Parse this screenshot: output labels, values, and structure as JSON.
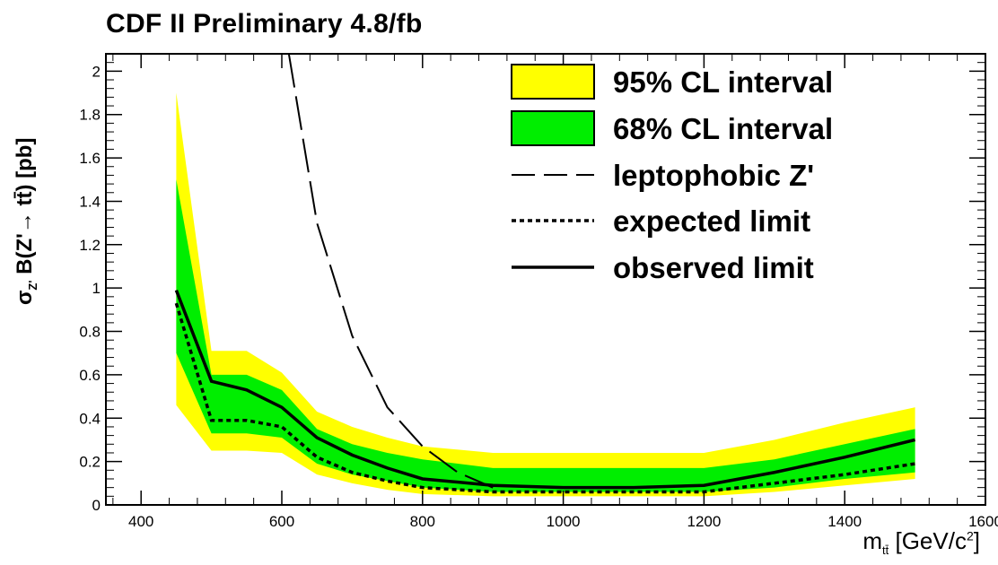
{
  "chart_data": {
    "type": "line",
    "title": "CDF II Preliminary 4.8/fb",
    "xlabel_main": "m",
    "xlabel_sub": "tt̄",
    "xlabel_unit": " [GeV/c",
    "xlabel_sup": "2",
    "xlabel_end": "]",
    "ylabel_sigma": "σ",
    "ylabel_sub": "Z'",
    "ylabel_rest": " B(Z'→ tt̄) [pb]",
    "xlim": [
      350,
      1600
    ],
    "ylim": [
      0,
      2.08
    ],
    "x_ticks": [
      400,
      600,
      800,
      1000,
      1200,
      1400,
      1600
    ],
    "y_ticks": [
      0,
      0.2,
      0.4,
      0.6,
      0.8,
      1,
      1.2,
      1.4,
      1.6,
      1.8,
      2
    ],
    "mass_points": [
      450,
      500,
      550,
      600,
      650,
      700,
      750,
      800,
      900,
      1000,
      1100,
      1200,
      1300,
      1400,
      1500
    ],
    "band95": {
      "name": "95% CL interval",
      "upper": [
        1.9,
        0.71,
        0.71,
        0.61,
        0.43,
        0.36,
        0.31,
        0.27,
        0.24,
        0.24,
        0.24,
        0.24,
        0.3,
        0.38,
        0.45
      ],
      "lower": [
        0.46,
        0.25,
        0.25,
        0.24,
        0.14,
        0.1,
        0.07,
        0.05,
        0.04,
        0.04,
        0.04,
        0.04,
        0.06,
        0.09,
        0.12
      ]
    },
    "band68": {
      "name": "68% CL interval",
      "upper": [
        1.5,
        0.6,
        0.6,
        0.53,
        0.35,
        0.28,
        0.24,
        0.21,
        0.17,
        0.17,
        0.17,
        0.17,
        0.21,
        0.28,
        0.35
      ],
      "lower": [
        0.7,
        0.33,
        0.33,
        0.31,
        0.19,
        0.14,
        0.11,
        0.08,
        0.06,
        0.06,
        0.06,
        0.06,
        0.08,
        0.12,
        0.15
      ]
    },
    "series": [
      {
        "name": "leptophobic Z'",
        "style": "longdash",
        "x": [
          610,
          650,
          700,
          750,
          800,
          850,
          900
        ],
        "y": [
          2.08,
          1.3,
          0.78,
          0.45,
          0.27,
          0.15,
          0.08
        ]
      },
      {
        "name": "expected limit",
        "style": "dotted",
        "x": [
          450,
          500,
          550,
          600,
          650,
          700,
          750,
          800,
          900,
          1000,
          1100,
          1200,
          1300,
          1400,
          1500
        ],
        "y": [
          0.93,
          0.39,
          0.39,
          0.36,
          0.22,
          0.15,
          0.11,
          0.08,
          0.06,
          0.06,
          0.06,
          0.06,
          0.1,
          0.14,
          0.19
        ]
      },
      {
        "name": "observed limit",
        "style": "solid",
        "x": [
          450,
          500,
          550,
          600,
          650,
          700,
          750,
          800,
          900,
          1000,
          1100,
          1200,
          1300,
          1400,
          1500
        ],
        "y": [
          0.99,
          0.57,
          0.53,
          0.45,
          0.31,
          0.23,
          0.17,
          0.12,
          0.09,
          0.08,
          0.08,
          0.09,
          0.15,
          0.22,
          0.3
        ]
      }
    ],
    "legend_position": "top-right",
    "colors": {
      "band95": "#ffff00",
      "band68": "#00ee00",
      "line": "#000000"
    }
  }
}
